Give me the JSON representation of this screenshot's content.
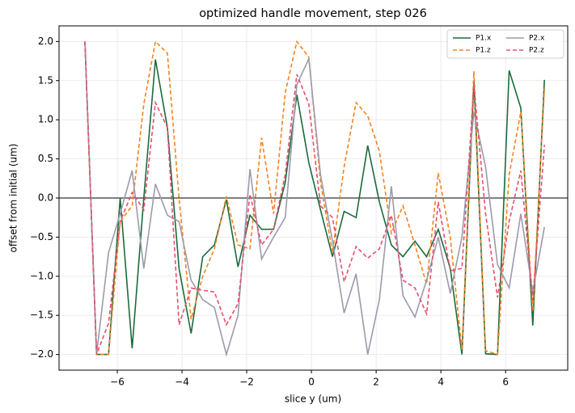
{
  "chart_data": {
    "type": "line",
    "title": "optimized handle movement, step 026",
    "x_label": "slice y (um)",
    "y_label": "offset from initial (um)",
    "x": [
      -7.0,
      -6.64,
      -6.27,
      -5.91,
      -5.54,
      -5.18,
      -4.82,
      -4.45,
      -4.09,
      -3.72,
      -3.36,
      -3.0,
      -2.63,
      -2.27,
      -1.9,
      -1.54,
      -1.17,
      -0.81,
      -0.45,
      -0.08,
      0.28,
      0.65,
      1.01,
      1.38,
      1.74,
      2.1,
      2.47,
      2.83,
      3.2,
      3.56,
      3.92,
      4.29,
      4.65,
      5.02,
      5.38,
      5.75,
      6.11,
      6.47,
      6.84,
      7.2
    ],
    "series": [
      {
        "name": "P1.x",
        "color": "#1b6b3c",
        "dash": "solid",
        "values": [
          2.0,
          -2.0,
          -2.0,
          0.0,
          -1.92,
          0.0,
          1.77,
          0.9,
          -0.9,
          -1.73,
          -0.75,
          -0.6,
          -0.02,
          -0.88,
          -0.22,
          -0.4,
          -0.4,
          0.2,
          1.32,
          0.45,
          -0.15,
          -0.75,
          -0.17,
          -0.25,
          0.67,
          -0.05,
          -0.6,
          -0.75,
          -0.55,
          -0.75,
          -0.4,
          -0.9,
          -2.0,
          1.5,
          -1.99,
          -2.0,
          1.63,
          1.15,
          -1.63,
          1.51
        ]
      },
      {
        "name": "P1.z",
        "color": "#f5821f",
        "dash": "dashed",
        "values": [
          2.0,
          -2.0,
          -2.0,
          -0.3,
          -0.1,
          1.2,
          2.0,
          1.85,
          0.0,
          -1.55,
          -1.0,
          -0.65,
          0.02,
          -0.6,
          -0.65,
          0.77,
          -0.2,
          1.35,
          2.0,
          1.8,
          0.2,
          -0.7,
          0.4,
          1.22,
          1.05,
          0.6,
          -0.45,
          -0.1,
          -0.6,
          -1.1,
          0.32,
          -0.5,
          -1.95,
          1.62,
          -1.95,
          -2.0,
          0.3,
          1.1,
          -1.45,
          1.4
        ]
      },
      {
        "name": "P2.x",
        "color": "#9d9aab",
        "dash": "solid",
        "values": [
          2.0,
          -2.0,
          -0.7,
          -0.2,
          0.35,
          -0.9,
          0.18,
          -0.22,
          -0.3,
          -1.05,
          -1.3,
          -1.4,
          -2.0,
          -1.5,
          0.37,
          -0.78,
          -0.5,
          -0.25,
          1.45,
          1.78,
          0.3,
          -0.55,
          -1.47,
          -0.97,
          -2.0,
          -1.3,
          0.15,
          -1.25,
          -1.52,
          -1.05,
          -0.5,
          -1.22,
          -0.5,
          1.1,
          0.4,
          -0.85,
          -1.15,
          -0.2,
          -1.2,
          -0.37
        ]
      },
      {
        "name": "P2.z",
        "color": "#e84f6e",
        "dash": "dashed",
        "values": [
          2.0,
          -2.0,
          -1.6,
          -0.3,
          0.07,
          -0.15,
          1.22,
          0.9,
          -1.62,
          -1.15,
          -1.18,
          -1.2,
          -1.62,
          -1.35,
          0.05,
          -0.6,
          -0.4,
          0.3,
          1.58,
          1.2,
          -0.1,
          -0.25,
          -1.07,
          -0.62,
          -0.77,
          -0.65,
          -0.22,
          -1.05,
          -1.15,
          -1.48,
          -0.05,
          -0.93,
          -0.9,
          1.45,
          -0.2,
          -1.27,
          -0.3,
          0.35,
          -1.3,
          0.68
        ]
      }
    ],
    "xlim": [
      -7.8,
      7.92
    ],
    "ylim": [
      -2.2,
      2.2
    ],
    "xticks": [
      {
        "value": -6,
        "label": "−6"
      },
      {
        "value": -4,
        "label": "−4"
      },
      {
        "value": -2,
        "label": "−2"
      },
      0,
      2,
      4,
      6
    ],
    "yticks": [
      {
        "value": -2,
        "label": "−2.0"
      },
      {
        "value": -1.5,
        "label": "−1.5"
      },
      {
        "value": -1,
        "label": "−1.0"
      },
      {
        "value": -0.5,
        "label": "−0.5"
      },
      {
        "value": 0,
        "label": "0.0"
      },
      0.5,
      {
        "value": 1,
        "label": "1.0"
      },
      1.5,
      {
        "value": 2,
        "label": "2.0"
      }
    ],
    "hline": 0,
    "grid": true,
    "legend": "upper right"
  }
}
